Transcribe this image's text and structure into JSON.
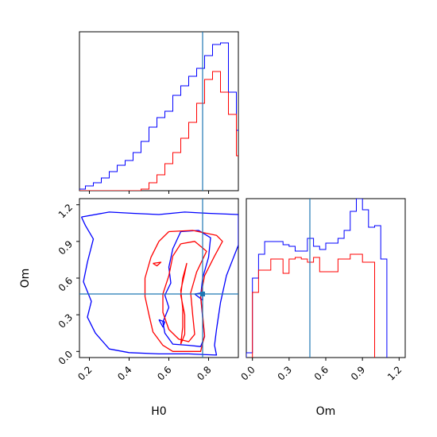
{
  "chart_data": {
    "type": "corner",
    "parameters": [
      "H0",
      "Om"
    ],
    "truth": {
      "H0": 0.77,
      "Om": 0.47
    },
    "truth_color": "#1f77b4",
    "series": [
      {
        "color": "#0000ff"
      },
      {
        "color": "#ff0000"
      }
    ],
    "panels": [
      {
        "id": "hist-H0",
        "type": "histogram-step",
        "x_range": [
          0.15,
          0.95
        ],
        "x_ticks": [
          0.2,
          0.4,
          0.6,
          0.8
        ],
        "y_range": [
          0,
          1.0
        ],
        "bins": {
          "start": 0.1,
          "width": 0.04,
          "blue": [
            0,
            0.01,
            0.03,
            0.05,
            0.08,
            0.12,
            0.16,
            0.19,
            0.24,
            0.31,
            0.4,
            0.46,
            0.5,
            0.6,
            0.66,
            0.72,
            0.77,
            0.85,
            0.92,
            0.93,
            0.62,
            0.38,
            0.18,
            0.05,
            0
          ],
          "red": [
            0,
            0,
            0,
            0,
            0,
            0,
            0,
            0,
            0,
            0.01,
            0.05,
            0.1,
            0.17,
            0.24,
            0.33,
            0.43,
            0.55,
            0.7,
            0.75,
            0.62,
            0.48,
            0.22,
            0.11,
            0,
            0
          ]
        }
      },
      {
        "id": "hist-Om",
        "type": "histogram-step",
        "x_range": [
          -0.05,
          1.25
        ],
        "x_ticks": [
          "0.0",
          "0.3",
          "0.6",
          "0.9",
          "1.2"
        ],
        "y_range": [
          0,
          1.0
        ],
        "bins": {
          "blue_edges": [
            -0.05,
            0.0,
            0.05,
            0.1,
            0.15,
            0.2,
            0.25,
            0.3,
            0.35,
            0.4,
            0.45,
            0.5,
            0.55,
            0.6,
            0.65,
            0.7,
            0.75,
            0.8,
            0.85,
            0.9,
            0.95,
            1.0,
            1.05,
            1.1
          ],
          "blue": [
            0.03,
            0.5,
            0.65,
            0.73,
            0.73,
            0.73,
            0.71,
            0.7,
            0.67,
            0.67,
            0.75,
            0.7,
            0.68,
            0.72,
            0.72,
            0.75,
            0.8,
            0.92,
            1.0,
            0.93,
            0.82,
            0.83,
            0.62
          ],
          "red_edges": [
            0.0,
            0.05,
            0.1,
            0.15,
            0.2,
            0.25,
            0.3,
            0.35,
            0.4,
            0.45,
            0.5,
            0.55,
            0.6,
            0.65,
            0.7,
            0.75,
            0.8,
            0.85,
            0.9,
            0.95,
            1.0
          ],
          "red": [
            0.41,
            0.55,
            0.55,
            0.62,
            0.62,
            0.53,
            0.62,
            0.63,
            0.62,
            0.6,
            0.63,
            0.54,
            0.54,
            0.54,
            0.62,
            0.62,
            0.65,
            0.65,
            0.6,
            0.6
          ]
        }
      },
      {
        "id": "contour-H0-Om",
        "type": "contour-2d",
        "x_range": [
          0.15,
          0.95
        ],
        "y_range": [
          -0.05,
          1.25
        ],
        "x_ticks": [
          0.2,
          0.4,
          0.6,
          0.8
        ],
        "y_ticks": [
          "0.0",
          "0.3",
          "0.6",
          "0.9",
          "1.2"
        ],
        "contours": [
          {
            "color": "#0000ff",
            "points": [
              [
                0.16,
                1.1
              ],
              [
                0.3,
                1.14
              ],
              [
                0.42,
                1.13
              ],
              [
                0.55,
                1.12
              ],
              [
                0.68,
                1.14
              ],
              [
                0.8,
                1.13
              ],
              [
                0.95,
                1.12
              ],
              [
                0.95,
                0.87
              ],
              [
                0.89,
                0.62
              ],
              [
                0.86,
                0.4
              ],
              [
                0.84,
                0.18
              ],
              [
                0.83,
                0.05
              ],
              [
                0.84,
                -0.03
              ],
              [
                0.7,
                -0.02
              ],
              [
                0.55,
                -0.02
              ],
              [
                0.4,
                -0.01
              ],
              [
                0.3,
                0.02
              ],
              [
                0.23,
                0.15
              ],
              [
                0.19,
                0.28
              ],
              [
                0.21,
                0.41
              ],
              [
                0.17,
                0.57
              ],
              [
                0.19,
                0.73
              ],
              [
                0.22,
                0.92
              ],
              [
                0.18,
                1.03
              ],
              [
                0.16,
                1.1
              ]
            ]
          },
          {
            "color": "#0000ff",
            "points": [
              [
                0.66,
                0.98
              ],
              [
                0.75,
                0.99
              ],
              [
                0.81,
                0.93
              ],
              [
                0.8,
                0.77
              ],
              [
                0.77,
                0.6
              ],
              [
                0.76,
                0.45
              ],
              [
                0.77,
                0.28
              ],
              [
                0.78,
                0.12
              ],
              [
                0.76,
                0.04
              ],
              [
                0.7,
                0.05
              ],
              [
                0.62,
                0.06
              ],
              [
                0.58,
                0.15
              ],
              [
                0.57,
                0.24
              ],
              [
                0.6,
                0.36
              ],
              [
                0.58,
                0.46
              ],
              [
                0.61,
                0.56
              ],
              [
                0.6,
                0.69
              ],
              [
                0.62,
                0.84
              ],
              [
                0.66,
                0.98
              ]
            ]
          },
          {
            "color": "#0000ff",
            "points": [
              [
                0.55,
                0.26
              ],
              [
                0.58,
                0.24
              ],
              [
                0.57,
                0.2
              ],
              [
                0.55,
                0.26
              ]
            ]
          },
          {
            "color": "#0000ff",
            "points": [
              [
                0.73,
                0.47
              ],
              [
                0.77,
                0.48
              ],
              [
                0.77,
                0.42
              ],
              [
                0.73,
                0.47
              ]
            ]
          },
          {
            "color": "#ff0000",
            "points": [
              [
                0.6,
                0.98
              ],
              [
                0.72,
                0.99
              ],
              [
                0.84,
                0.95
              ],
              [
                0.87,
                0.9
              ],
              [
                0.83,
                0.78
              ],
              [
                0.78,
                0.62
              ],
              [
                0.76,
                0.45
              ],
              [
                0.77,
                0.3
              ],
              [
                0.78,
                0.13
              ],
              [
                0.76,
                0.0
              ],
              [
                0.7,
                0.0
              ],
              [
                0.62,
                0.0
              ],
              [
                0.57,
                0.05
              ],
              [
                0.52,
                0.16
              ],
              [
                0.5,
                0.3
              ],
              [
                0.48,
                0.45
              ],
              [
                0.48,
                0.6
              ],
              [
                0.51,
                0.77
              ],
              [
                0.55,
                0.9
              ],
              [
                0.6,
                0.98
              ]
            ]
          },
          {
            "color": "#ff0000",
            "points": [
              [
                0.66,
                0.88
              ],
              [
                0.73,
                0.9
              ],
              [
                0.79,
                0.82
              ],
              [
                0.74,
                0.65
              ],
              [
                0.71,
                0.48
              ],
              [
                0.72,
                0.3
              ],
              [
                0.73,
                0.14
              ],
              [
                0.7,
                0.08
              ],
              [
                0.65,
                0.1
              ],
              [
                0.6,
                0.18
              ],
              [
                0.57,
                0.32
              ],
              [
                0.57,
                0.47
              ],
              [
                0.6,
                0.62
              ],
              [
                0.62,
                0.78
              ],
              [
                0.66,
                0.88
              ]
            ]
          },
          {
            "color": "#ff0000",
            "points": [
              [
                0.66,
                0.06
              ],
              [
                0.68,
                0.14
              ],
              [
                0.68,
                0.3
              ],
              [
                0.66,
                0.46
              ],
              [
                0.67,
                0.6
              ],
              [
                0.69,
                0.72
              ],
              [
                0.68,
                0.64
              ],
              [
                0.66,
                0.5
              ],
              [
                0.67,
                0.35
              ],
              [
                0.67,
                0.2
              ],
              [
                0.66,
                0.06
              ]
            ]
          },
          {
            "color": "#ff0000",
            "points": [
              [
                0.52,
                0.72
              ],
              [
                0.56,
                0.73
              ],
              [
                0.54,
                0.7
              ],
              [
                0.52,
                0.72
              ]
            ]
          }
        ]
      }
    ],
    "xlabels": {
      "H0": "H0",
      "Om": "Om"
    },
    "ylabels": {
      "Om": "Om"
    }
  }
}
